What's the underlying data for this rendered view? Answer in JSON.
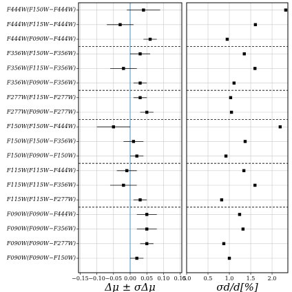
{
  "chart_data": [
    {
      "type": "errorbar",
      "xlabel": "Δμ ± σΔμ",
      "categories": [
        "F444W(F150W−F444W)",
        "F444W(F115W−F444W)",
        "F444W(F090W−F444W)",
        "F356W(F150W−F356W)",
        "F356W(F115W−F356W)",
        "F356W(F090W−F356W)",
        "F277W(F115W−F277W)",
        "F277W(F090W−F277W)",
        "F150W(F150W−F444W)",
        "F150W(F150W−F356W)",
        "F150W(F090W−F150W)",
        "F115W(F115W−F444W)",
        "F115W(F115W−F356W)",
        "F115W(F115W−F277W)",
        "F090W(F090W−F444W)",
        "F090W(F090W−F356W)",
        "F090W(F090W−F277W)",
        "F090W(F090W−F150W)"
      ],
      "values": [
        0.04,
        -0.03,
        0.06,
        0.03,
        -0.02,
        0.03,
        0.03,
        0.05,
        -0.05,
        0.01,
        0.02,
        -0.01,
        -0.02,
        0.03,
        0.05,
        0.05,
        0.05,
        0.02
      ],
      "errors": [
        0.05,
        0.04,
        0.02,
        0.03,
        0.04,
        0.02,
        0.02,
        0.02,
        0.05,
        0.03,
        0.02,
        0.03,
        0.04,
        0.02,
        0.03,
        0.03,
        0.02,
        0.02
      ],
      "color": "#000000",
      "vline": 0,
      "vline_color": "#4a8fc0",
      "xlim": [
        -0.155,
        0.155
      ],
      "xticks": [
        {
          "value": -0.15,
          "label": "−0.15"
        },
        {
          "value": -0.1,
          "label": "−0.10"
        },
        {
          "value": -0.05,
          "label": "−0.05"
        },
        {
          "value": 0,
          "label": "0.00"
        },
        {
          "value": 0.05,
          "label": "0.05"
        },
        {
          "value": 0.1,
          "label": "0.10"
        },
        {
          "value": 0.15,
          "label": "0.15"
        }
      ],
      "grid": true
    },
    {
      "type": "scatter",
      "xlabel": "σd/d[%]",
      "values": [
        2.32,
        1.61,
        0.95,
        1.35,
        1.6,
        1.11,
        1.03,
        1.05,
        2.19,
        1.37,
        0.92,
        1.34,
        1.6,
        0.82,
        1.24,
        1.32,
        0.87,
        1.0
      ],
      "color": "#000000",
      "xlim": [
        0,
        2.37
      ],
      "xticks": [
        {
          "value": 0,
          "label": "0.0"
        },
        {
          "value": 0.5,
          "label": "0.5"
        },
        {
          "value": 1,
          "label": "1.0"
        },
        {
          "value": 1.5,
          "label": "1.5"
        },
        {
          "value": 2,
          "label": "2.0"
        }
      ],
      "grid": true
    }
  ]
}
